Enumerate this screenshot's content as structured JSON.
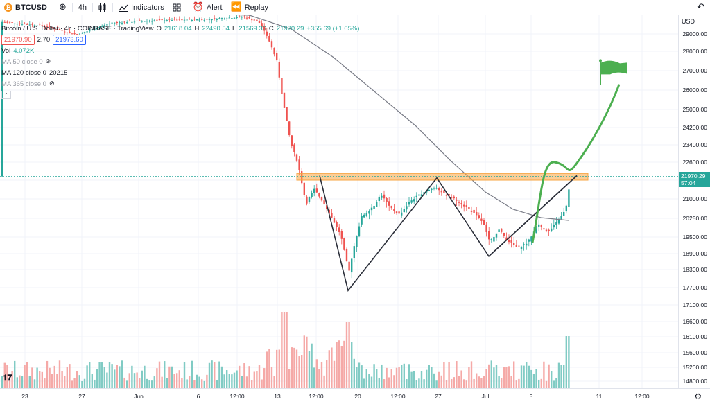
{
  "toolbar": {
    "symbol": "BTCUSD",
    "interval": "4h",
    "indicators_label": "Indicators",
    "alert_label": "Alert",
    "replay_label": "Replay"
  },
  "legend": {
    "title": "Bitcoin / U.S. Dollar · 4h · COINBASE · TradingView",
    "open_label": "O",
    "open": "21618.04",
    "high_label": "H",
    "high": "22490.54",
    "low_label": "L",
    "low": "21569.36",
    "close_label": "C",
    "close": "21970.29",
    "change": "+355.69 (+1.65%)",
    "bid": "21970.90",
    "spread": "2.70",
    "ask": "21973.60",
    "vol_label": "Vol",
    "vol_value": "4.072K",
    "ma50": "MA 50 close 0",
    "ma120": "MA 120 close 0",
    "ma120_value": "20215",
    "ma365": "MA 365 close 0"
  },
  "price_axis": {
    "currency": "USD",
    "ticks": [
      "29000.00",
      "28000.00",
      "27000.00",
      "26000.00",
      "25000.00",
      "24200.00",
      "23400.00",
      "22600.00",
      "21800.00",
      "21000.00",
      "20250.00",
      "19500.00",
      "18900.00",
      "18300.00",
      "17700.00",
      "17100.00",
      "16600.00",
      "16100.00",
      "15600.00",
      "15200.00",
      "14800.00"
    ],
    "last_price": "21970.29",
    "countdown": "57:04"
  },
  "time_axis": {
    "labels": [
      "23",
      "27",
      "Jun",
      "6",
      "12:00",
      "13",
      "12:00",
      "20",
      "12:00",
      "27",
      "Jul",
      "5",
      "11",
      "12:00"
    ]
  },
  "colors": {
    "up": "#26a69a",
    "down": "#ef5350",
    "volume_up": "#80cbc4",
    "volume_down": "#f5a9a7",
    "ma": "#787b86",
    "zone": "#f7a440",
    "pattern_line": "#2a2e39",
    "projection": "#4caf50"
  },
  "chart_data": {
    "type": "candlestick",
    "symbol": "BTCUSD",
    "interval": "4h",
    "exchange": "COINBASE",
    "ylim": [
      14500,
      29500
    ],
    "resistance_zone": [
      21800,
      22100
    ],
    "w_pattern_points": [
      {
        "label": "13",
        "y": 22000
      },
      {
        "label": "20",
        "y": 17600
      },
      {
        "label": "27",
        "y": 21900
      },
      {
        "label": "Jul",
        "y": 18800
      },
      {
        "label": "5",
        "y": 22000
      }
    ],
    "projection_target": 26700,
    "last_price": 21970.29
  }
}
